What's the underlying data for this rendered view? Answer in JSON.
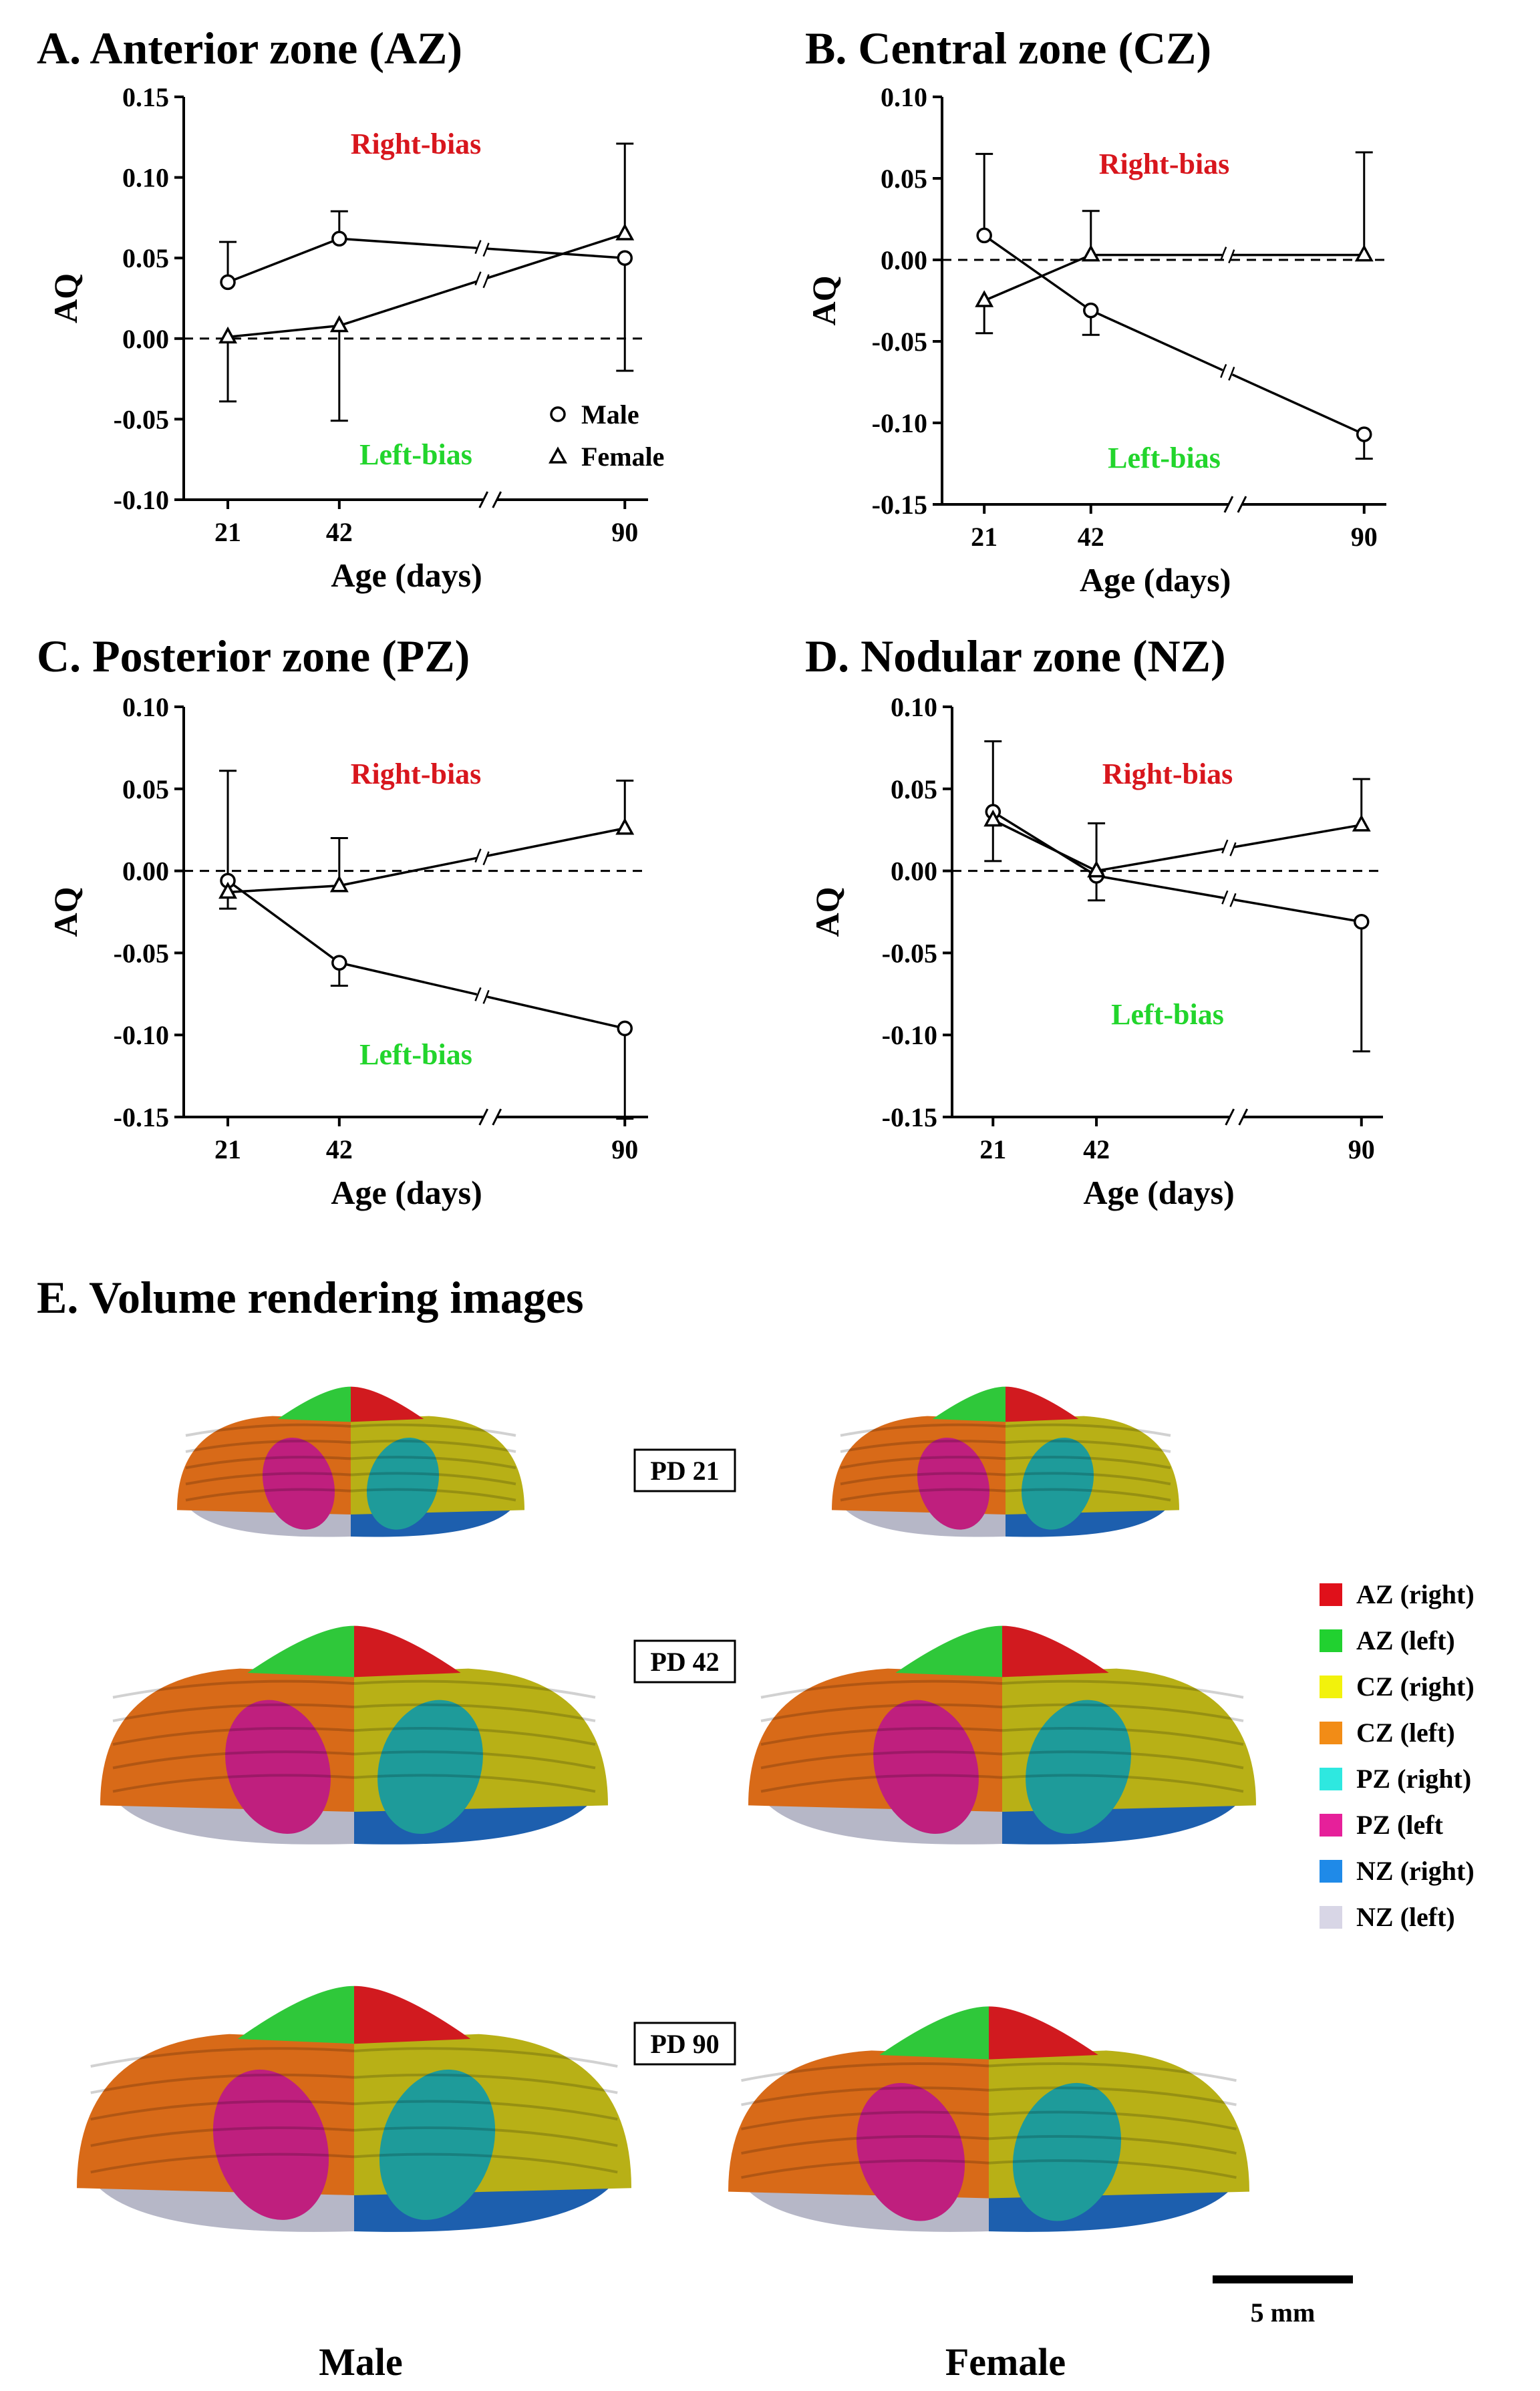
{
  "chart_data": [
    {
      "type": "line",
      "panel": "A",
      "title": "A. Anterior zone (AZ)",
      "xlabel": "Age (days)",
      "ylabel": "AQ",
      "categories": [
        "21",
        "42",
        "90"
      ],
      "ylim": [
        -0.1,
        0.15
      ],
      "yticks": [
        "0.15",
        "0.10",
        "0.05",
        "0.00",
        "-0.05",
        "-0.10"
      ],
      "right_label": "Right-bias",
      "left_label": "Left-bias",
      "legend": [
        "Male",
        "Female"
      ],
      "series": [
        {
          "name": "Male",
          "marker": "circle",
          "values": [
            0.035,
            0.062,
            0.05
          ],
          "err_up": [
            0.025,
            0.017,
            0.0
          ],
          "err_down": [
            0.0,
            0.0,
            0.07
          ]
        },
        {
          "name": "Female",
          "marker": "triangle",
          "values": [
            0.001,
            0.008,
            0.065
          ],
          "err_up": [
            0.0,
            0.0,
            0.056
          ],
          "err_down": [
            0.04,
            0.059,
            0.0
          ]
        }
      ]
    },
    {
      "type": "line",
      "panel": "B",
      "title": "B. Central zone (CZ)",
      "xlabel": "Age (days)",
      "ylabel": "AQ",
      "categories": [
        "21",
        "42",
        "90"
      ],
      "ylim": [
        -0.15,
        0.1
      ],
      "yticks": [
        "0.10",
        "0.05",
        "0.00",
        "-0.05",
        "-0.10",
        "-0.15"
      ],
      "right_label": "Right-bias",
      "left_label": "Left-bias",
      "series": [
        {
          "name": "Male",
          "marker": "circle",
          "values": [
            0.015,
            -0.031,
            -0.107
          ],
          "err_up": [
            0.05,
            0.0,
            0.0
          ],
          "err_down": [
            0.0,
            0.015,
            0.015
          ]
        },
        {
          "name": "Female",
          "marker": "triangle",
          "values": [
            -0.025,
            0.003,
            0.003
          ],
          "err_up": [
            0.0,
            0.027,
            0.063
          ],
          "err_down": [
            0.02,
            0.0,
            0.0
          ]
        }
      ]
    },
    {
      "type": "line",
      "panel": "C",
      "title": "C. Posterior zone (PZ)",
      "xlabel": "Age (days)",
      "ylabel": "AQ",
      "categories": [
        "21",
        "42",
        "90"
      ],
      "ylim": [
        -0.15,
        0.1
      ],
      "yticks": [
        "0.10",
        "0.05",
        "0.00",
        "-0.05",
        "-0.10",
        "-0.15"
      ],
      "right_label": "Right-bias",
      "left_label": "Left-bias",
      "series": [
        {
          "name": "Male",
          "marker": "circle",
          "values": [
            -0.006,
            -0.056,
            -0.096
          ],
          "err_up": [
            0.067,
            0.0,
            0.0
          ],
          "err_down": [
            0.0,
            0.014,
            0.055
          ]
        },
        {
          "name": "Female",
          "marker": "triangle",
          "values": [
            -0.013,
            -0.009,
            0.026
          ],
          "err_up": [
            0.0,
            0.029,
            0.029
          ],
          "err_down": [
            0.01,
            0.0,
            0.0
          ]
        }
      ]
    },
    {
      "type": "line",
      "panel": "D",
      "title": "D. Nodular zone (NZ)",
      "xlabel": "Age (days)",
      "ylabel": "AQ",
      "categories": [
        "21",
        "42",
        "90"
      ],
      "ylim": [
        -0.15,
        0.1
      ],
      "yticks": [
        "0.10",
        "0.05",
        "0.00",
        "-0.05",
        "-0.10",
        "-0.15"
      ],
      "right_label": "Right-bias",
      "left_label": "Left-bias",
      "series": [
        {
          "name": "Male",
          "marker": "circle",
          "values": [
            0.036,
            -0.003,
            -0.031
          ],
          "err_up": [
            0.043,
            0.0,
            0.0
          ],
          "err_down": [
            0.0,
            0.015,
            0.079
          ]
        },
        {
          "name": "Female",
          "marker": "triangle",
          "values": [
            0.031,
            0.0,
            0.028
          ],
          "err_up": [
            0.0,
            0.029,
            0.028
          ],
          "err_down": [
            0.025,
            0.0,
            0.0
          ]
        }
      ]
    }
  ],
  "volume_section": {
    "title": "E. Volume rendering images",
    "ages": [
      "PD 21",
      "PD 42",
      "PD 90"
    ],
    "columns": [
      "Male",
      "Female"
    ],
    "scale_bar": "5 mm",
    "legend": [
      {
        "label": "AZ (right)",
        "color": "#e0101a"
      },
      {
        "label": "AZ (left)",
        "color": "#21d130"
      },
      {
        "label": "CZ (right)",
        "color": "#f2f20c"
      },
      {
        "label": "CZ (left)",
        "color": "#f28c16"
      },
      {
        "label": "PZ (right)",
        "color": "#2ee8e0"
      },
      {
        "label": "PZ (left",
        "color": "#e6209a"
      },
      {
        "label": "NZ (right)",
        "color": "#1f8ae8"
      },
      {
        "label": "NZ (left)",
        "color": "#d8d6e6"
      }
    ],
    "render_colors": {
      "az_right": "#d11a1f",
      "az_left": "#2fc83a",
      "cz_right": "#b8b016",
      "cz_left": "#d86a18",
      "pz_right": "#1e9b9a",
      "pz_left": "#bf1f7e",
      "nz_right": "#1d5fae",
      "nz_left": "#b6b7c7"
    }
  }
}
